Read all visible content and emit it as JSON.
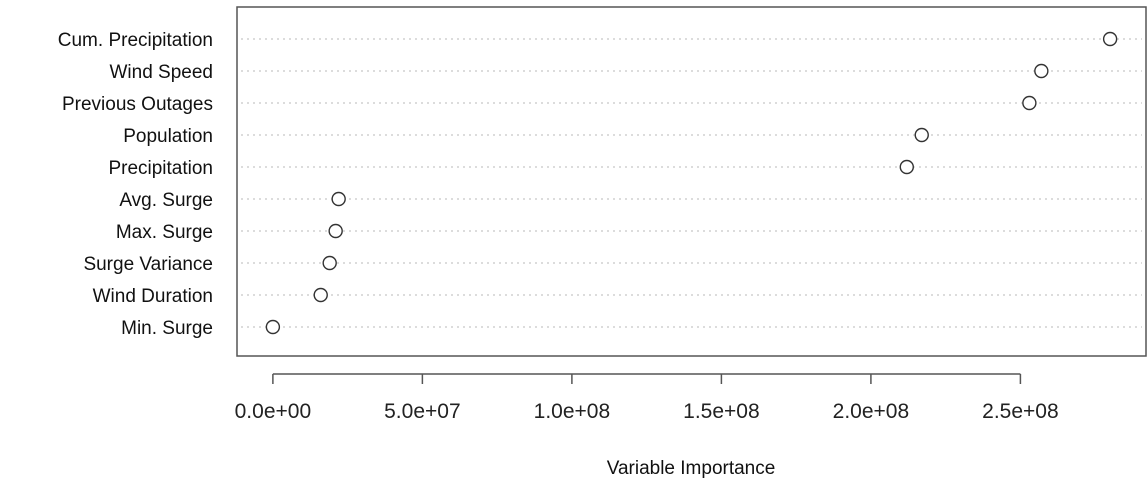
{
  "chart_data": {
    "type": "scatter",
    "style": "dot-plot",
    "xlabel": "Variable Importance",
    "categories": [
      "Cum. Precipitation",
      "Wind Speed",
      "Previous Outages",
      "Population",
      "Precipitation",
      "Avg. Surge",
      "Max. Surge",
      "Surge Variance",
      "Wind Duration",
      "Min. Surge"
    ],
    "values": [
      280000000,
      257000000,
      253000000,
      217000000,
      212000000,
      22000000,
      21000000,
      19000000,
      16000000,
      0
    ],
    "xticks": [
      0,
      50000000,
      100000000,
      150000000,
      200000000,
      250000000
    ],
    "xtick_labels": [
      "0.0e+00",
      "5.0e+07",
      "1.0e+08",
      "1.5e+08",
      "2.0e+08",
      "2.5e+08"
    ],
    "xlim": [
      -12000000,
      292000000
    ],
    "grid": "horizontal-dotted",
    "marker": "open-circle"
  }
}
